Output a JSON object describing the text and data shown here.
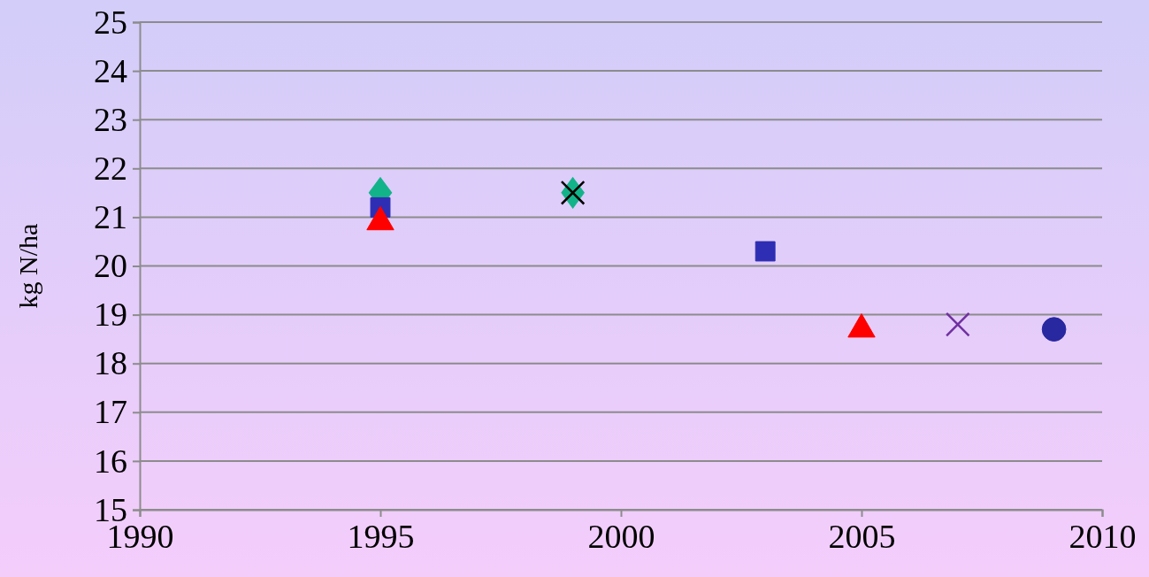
{
  "chart_data": {
    "type": "scatter",
    "ylabel": "kg N/ha",
    "xlim": [
      1990,
      2010
    ],
    "xticks": [
      1990,
      1995,
      2000,
      2005,
      2010
    ],
    "ylim": [
      15,
      25
    ],
    "yticks": [
      15,
      16,
      17,
      18,
      19,
      20,
      21,
      22,
      23,
      24,
      25
    ],
    "grid": "y",
    "series": [
      {
        "marker": "diamond",
        "color": "#13b38a",
        "x": [
          1995,
          1999
        ],
        "values": [
          21.5,
          21.5
        ]
      },
      {
        "marker": "square",
        "color": "#2e2eb4",
        "x": [
          1995,
          2003
        ],
        "values": [
          21.2,
          20.3
        ]
      },
      {
        "marker": "triangle",
        "color": "#ff0000",
        "x": [
          1995,
          2005
        ],
        "values": [
          20.9,
          18.7
        ]
      },
      {
        "marker": "cross",
        "color": "#000000",
        "x": [
          1999
        ],
        "values": [
          21.5
        ]
      },
      {
        "marker": "cross",
        "color": "#7030a0",
        "x": [
          2007
        ],
        "values": [
          18.8
        ]
      },
      {
        "marker": "circle",
        "color": "#2828a0",
        "x": [
          2009
        ],
        "values": [
          18.7
        ]
      }
    ]
  }
}
